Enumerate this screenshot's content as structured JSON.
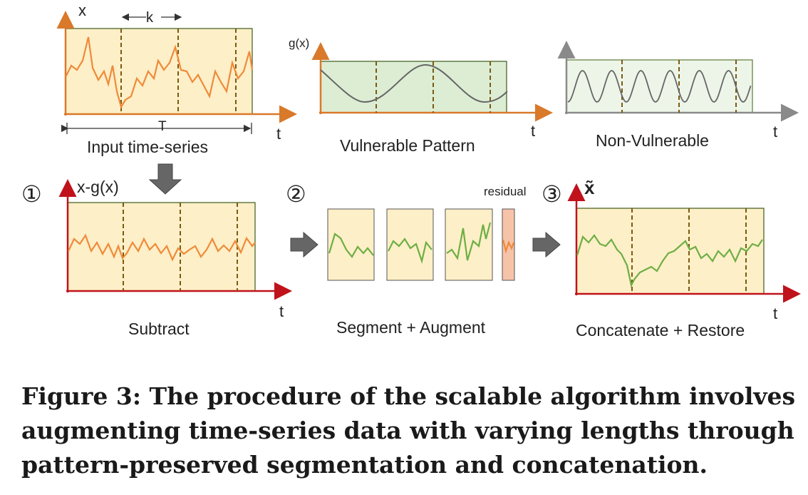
{
  "panels": {
    "input": {
      "y_label": "x",
      "segment_label": "k",
      "length_label": "T",
      "x_label": "t",
      "caption": "Input time-series"
    },
    "vulnerable": {
      "y_label": "g(x)",
      "x_label": "t",
      "caption": "Vulnerable Pattern"
    },
    "non_vulnerable": {
      "x_label": "t",
      "caption": "Non-Vulnerable"
    },
    "subtract": {
      "step": "①",
      "y_label": "x-g(x)",
      "x_label": "t",
      "caption": "Subtract"
    },
    "segment": {
      "step": "②",
      "residual_label": "residual",
      "caption": "Segment + Augment"
    },
    "concat": {
      "step": "③",
      "y_label": "x̃",
      "x_label": "t",
      "caption": "Concatenate + Restore"
    }
  },
  "figure_caption": "Figure 3: The procedure of the scalable algorithm involves augmenting time-series data with varying lengths through pattern-preserved segmentation and concatenation.",
  "colors": {
    "orange_axis": "#d9792a",
    "red_axis": "#c0121b",
    "gray_axis": "#8a8a8a",
    "panel_fill_orange": "#fdefc7",
    "panel_fill_green": "#dcedd4",
    "panel_fill_green_light": "#edf5e8",
    "orange_line": "#ef8a3a",
    "green_line": "#6dae45",
    "residual_fill": "#f6c3a9",
    "dash": "#7a5a12"
  }
}
